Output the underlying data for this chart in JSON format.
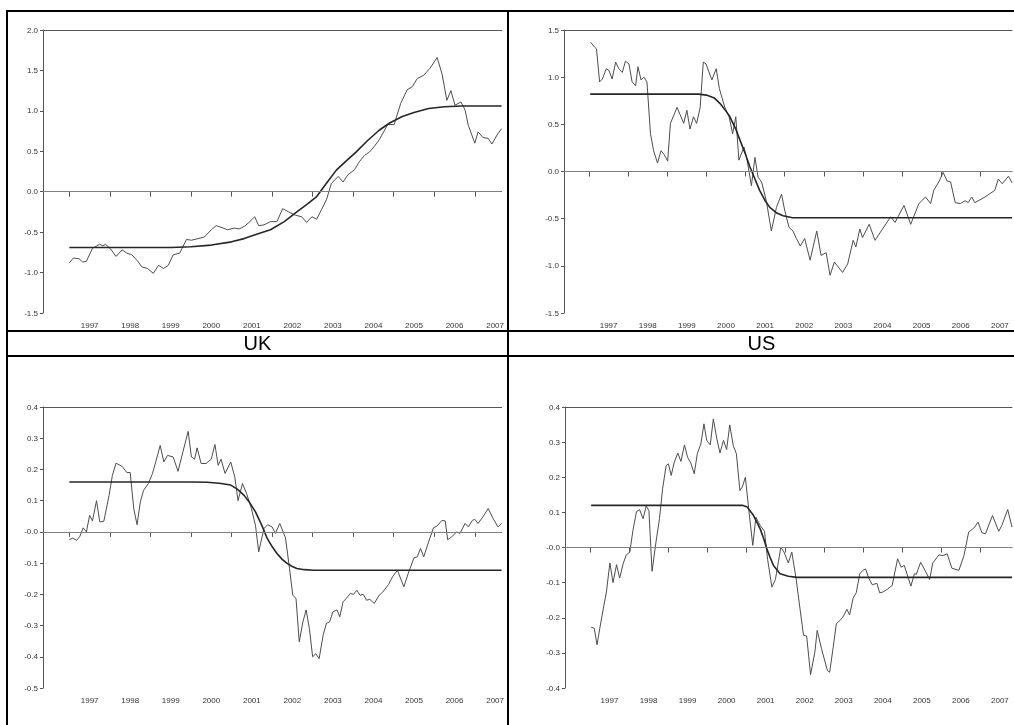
{
  "chart_data": [
    {
      "type": "line",
      "xlabel": "UK",
      "xlim": [
        1996.35,
        2007.66
      ],
      "ylim": [
        -1.5,
        2
      ],
      "xticks": [
        {
          "value": 1997,
          "label": null
        },
        {
          "value": 1997.5,
          "label": "1997"
        },
        {
          "value": 1998,
          "label": null
        },
        {
          "value": 1998.5,
          "label": "1998"
        },
        {
          "value": 1999,
          "label": null
        },
        {
          "value": 1999.5,
          "label": "1999"
        },
        {
          "value": 2000,
          "label": null
        },
        {
          "value": 2000.5,
          "label": "2000"
        },
        {
          "value": 2001,
          "label": null
        },
        {
          "value": 2001.5,
          "label": "2001"
        },
        {
          "value": 2002,
          "label": null
        },
        {
          "value": 2002.5,
          "label": "2002"
        },
        {
          "value": 2003,
          "label": null
        },
        {
          "value": 2003.5,
          "label": "2003"
        },
        {
          "value": 2004,
          "label": null
        },
        {
          "value": 2004.5,
          "label": "2004"
        },
        {
          "value": 2005,
          "label": null
        },
        {
          "value": 2005.5,
          "label": "2005"
        },
        {
          "value": 2006,
          "label": null
        },
        {
          "value": 2006.5,
          "label": "2006"
        },
        {
          "value": 2007,
          "label": null
        },
        {
          "value": 2007.5,
          "label": "2007"
        }
      ],
      "yticks": [
        {
          "value": -1.5,
          "label": "-1.5"
        },
        {
          "value": -1,
          "label": "-1.0"
        },
        {
          "value": -0.5,
          "label": "-0.5"
        },
        {
          "value": 0,
          "label": "0.0"
        },
        {
          "value": 0.5,
          "label": "0.5"
        },
        {
          "value": 1,
          "label": "1.0"
        },
        {
          "value": 1.5,
          "label": "1.5"
        },
        {
          "value": 2,
          "label": "2.0"
        }
      ],
      "ref_lines": [
        {
          "axis": "y",
          "value": 0,
          "color": "#808080"
        }
      ],
      "series": [
        {
          "color": "#4d4d4d",
          "x": [
            1997.0,
            1997.1,
            1997.24,
            1997.33,
            1997.42,
            1997.57,
            1997.75,
            1997.83,
            1997.89,
            1998.02,
            1998.15,
            1998.3,
            1998.42,
            1998.54,
            1998.67,
            1998.79,
            1998.93,
            1999.07,
            1999.2,
            1999.32,
            1999.44,
            1999.56,
            1999.72,
            1999.89,
            2000.01,
            2000.17,
            2000.33,
            2000.5,
            2000.62,
            2000.74,
            2000.9,
            2001.07,
            2001.19,
            2001.31,
            2001.43,
            2001.57,
            2001.67,
            2001.8,
            2001.96,
            2002.12,
            2002.26,
            2002.41,
            2002.57,
            2002.73,
            2002.85,
            2002.98,
            2003.1,
            2003.22,
            2003.34,
            2003.46,
            2003.63,
            2003.75,
            2003.87,
            2004.03,
            2004.15,
            2004.28,
            2004.4,
            2004.52,
            2004.64,
            2004.85,
            2005.01,
            2005.17,
            2005.33,
            2005.46,
            2005.58,
            2005.74,
            2005.9,
            2006.07,
            2006.19,
            2006.31,
            2006.41,
            2006.51,
            2006.66,
            2006.76,
            2006.84,
            2007.0,
            2007.08,
            2007.2,
            2007.33,
            2007.42,
            2007.57,
            2007.66
          ],
          "values": [
            -0.88,
            -0.82,
            -0.83,
            -0.87,
            -0.86,
            -0.7,
            -0.65,
            -0.67,
            -0.65,
            -0.71,
            -0.8,
            -0.72,
            -0.76,
            -0.78,
            -0.85,
            -0.93,
            -0.95,
            -1.01,
            -0.91,
            -0.95,
            -0.91,
            -0.78,
            -0.76,
            -0.59,
            -0.6,
            -0.58,
            -0.56,
            -0.47,
            -0.42,
            -0.44,
            -0.47,
            -0.45,
            -0.46,
            -0.43,
            -0.38,
            -0.31,
            -0.42,
            -0.41,
            -0.37,
            -0.37,
            -0.21,
            -0.25,
            -0.29,
            -0.31,
            -0.38,
            -0.31,
            -0.34,
            -0.22,
            -0.1,
            0.1,
            0.19,
            0.12,
            0.21,
            0.27,
            0.37,
            0.45,
            0.49,
            0.56,
            0.64,
            0.83,
            0.83,
            1.09,
            1.26,
            1.3,
            1.4,
            1.44,
            1.53,
            1.66,
            1.46,
            1.13,
            1.25,
            1.07,
            1.11,
            1.01,
            0.82,
            0.6,
            0.74,
            0.67,
            0.66,
            0.59,
            0.72,
            0.78
          ]
        },
        {
          "color": "#262626",
          "x": [
            1997.0,
            1998.0,
            1999.0,
            1999.5,
            2000.0,
            2000.5,
            2001.0,
            2001.31,
            2001.6,
            2001.96,
            2002.3,
            2002.61,
            2002.85,
            2003.1,
            2003.35,
            2003.59,
            2003.85,
            2004.07,
            2004.35,
            2004.64,
            2004.9,
            2005.21,
            2005.5,
            2005.86,
            2006.25,
            2006.67,
            2007.1,
            2007.66
          ],
          "values": [
            -0.69,
            -0.69,
            -0.69,
            -0.69,
            -0.68,
            -0.66,
            -0.62,
            -0.58,
            -0.53,
            -0.47,
            -0.37,
            -0.25,
            -0.16,
            -0.06,
            0.11,
            0.27,
            0.39,
            0.49,
            0.63,
            0.76,
            0.85,
            0.93,
            0.98,
            1.03,
            1.05,
            1.06,
            1.06,
            1.06
          ]
        }
      ]
    },
    {
      "type": "line",
      "xlabel": "US",
      "xlim": [
        1996.36,
        2007.81
      ],
      "ylim": [
        -1.5,
        1.5
      ],
      "xticks": [
        {
          "value": 1997,
          "label": null
        },
        {
          "value": 1997.5,
          "label": "1997"
        },
        {
          "value": 1998,
          "label": null
        },
        {
          "value": 1998.5,
          "label": "1998"
        },
        {
          "value": 1999,
          "label": null
        },
        {
          "value": 1999.5,
          "label": "1999"
        },
        {
          "value": 2000,
          "label": null
        },
        {
          "value": 2000.5,
          "label": "2000"
        },
        {
          "value": 2001,
          "label": null
        },
        {
          "value": 2001.5,
          "label": "2001"
        },
        {
          "value": 2002,
          "label": null
        },
        {
          "value": 2002.5,
          "label": "2002"
        },
        {
          "value": 2003,
          "label": null
        },
        {
          "value": 2003.5,
          "label": "2003"
        },
        {
          "value": 2004,
          "label": null
        },
        {
          "value": 2004.5,
          "label": "2004"
        },
        {
          "value": 2005,
          "label": null
        },
        {
          "value": 2005.5,
          "label": "2005"
        },
        {
          "value": 2006,
          "label": null
        },
        {
          "value": 2006.5,
          "label": "2006"
        },
        {
          "value": 2007,
          "label": null
        },
        {
          "value": 2007.5,
          "label": "2007"
        }
      ],
      "yticks": [
        {
          "value": -1.5,
          "label": "-1.5"
        },
        {
          "value": -1,
          "label": "-1.0"
        },
        {
          "value": -0.5,
          "label": "-0.5"
        },
        {
          "value": 0,
          "label": "0.0"
        },
        {
          "value": 0.5,
          "label": "0.5"
        },
        {
          "value": 1,
          "label": "1.0"
        },
        {
          "value": 1.5,
          "label": "1.5"
        }
      ],
      "ref_lines": [
        {
          "axis": "y",
          "value": 0,
          "color": "#808080"
        }
      ],
      "series": [
        {
          "color": "#4d4d4d",
          "x": [
            1997.04,
            1997.14,
            1997.19,
            1997.27,
            1997.34,
            1997.44,
            1997.51,
            1997.59,
            1997.68,
            1997.76,
            1997.85,
            1997.93,
            1998.02,
            1998.1,
            1998.19,
            1998.25,
            1998.33,
            1998.4,
            1998.48,
            1998.57,
            1998.65,
            1998.75,
            1998.84,
            1998.92,
            1999.01,
            1999.08,
            1999.25,
            1999.42,
            1999.5,
            1999.58,
            1999.67,
            1999.75,
            1999.84,
            1999.92,
            1999.99,
            2000.14,
            2000.25,
            2000.33,
            2000.47,
            2000.58,
            2000.67,
            2000.75,
            2000.83,
            2000.96,
            2001.04,
            2001.15,
            2001.24,
            2001.32,
            2001.41,
            2001.53,
            2001.66,
            2001.79,
            2001.92,
            2002.0,
            2002.11,
            2002.21,
            2002.3,
            2002.4,
            2002.51,
            2002.65,
            2002.82,
            2002.93,
            2003.06,
            2003.16,
            2003.27,
            2003.48,
            2003.61,
            2003.75,
            2003.82,
            2003.92,
            2003.99,
            2004.16,
            2004.31,
            2004.5,
            2004.71,
            2004.82,
            2005.05,
            2005.22,
            2005.43,
            2005.6,
            2005.73,
            2005.81,
            2005.94,
            2006.05,
            2006.15,
            2006.24,
            2006.36,
            2006.49,
            2006.61,
            2006.69,
            2006.78,
            2006.86,
            2007.12,
            2007.37,
            2007.46,
            2007.56,
            2007.72,
            2007.81
          ],
          "values": [
            1.37,
            1.32,
            1.3,
            0.95,
            0.98,
            1.09,
            1.07,
            0.98,
            1.16,
            1.09,
            1.05,
            1.17,
            1.14,
            0.95,
            0.91,
            1.11,
            0.97,
            1.0,
            0.95,
            0.4,
            0.22,
            0.09,
            0.22,
            0.18,
            0.11,
            0.51,
            0.68,
            0.51,
            0.65,
            0.45,
            0.58,
            0.51,
            0.68,
            1.16,
            1.14,
            0.97,
            1.09,
            0.88,
            0.68,
            0.58,
            0.4,
            0.58,
            0.12,
            0.26,
            0.12,
            -0.15,
            0.15,
            -0.06,
            -0.11,
            -0.31,
            -0.63,
            -0.38,
            -0.24,
            -0.41,
            -0.59,
            -0.63,
            -0.71,
            -0.79,
            -0.71,
            -0.94,
            -0.63,
            -0.89,
            -0.86,
            -1.1,
            -0.96,
            -1.07,
            -0.98,
            -0.73,
            -0.8,
            -0.61,
            -0.7,
            -0.56,
            -0.73,
            -0.61,
            -0.48,
            -0.54,
            -0.36,
            -0.56,
            -0.34,
            -0.27,
            -0.34,
            -0.2,
            -0.11,
            -0.01,
            -0.1,
            -0.11,
            -0.33,
            -0.34,
            -0.31,
            -0.33,
            -0.27,
            -0.33,
            -0.27,
            -0.2,
            -0.08,
            -0.13,
            -0.05,
            -0.12
          ]
        },
        {
          "color": "#262626",
          "x": [
            1997.03,
            1998.0,
            1999.0,
            1999.8,
            2000.0,
            2000.2,
            2000.35,
            2000.5,
            2000.6,
            2000.75,
            2000.86,
            2001.0,
            2001.11,
            2001.25,
            2001.36,
            2001.5,
            2001.62,
            2001.8,
            2001.96,
            2002.2,
            2002.47,
            2003.5,
            2005.0,
            2006.5,
            2007.81
          ],
          "values": [
            0.82,
            0.82,
            0.82,
            0.82,
            0.81,
            0.78,
            0.72,
            0.64,
            0.58,
            0.45,
            0.33,
            0.18,
            0.05,
            -0.09,
            -0.2,
            -0.31,
            -0.38,
            -0.44,
            -0.47,
            -0.49,
            -0.49,
            -0.49,
            -0.49,
            -0.49,
            -0.49
          ]
        }
      ]
    },
    {
      "type": "line",
      "xlim": [
        1996.35,
        2007.66
      ],
      "ylim": [
        -0.5,
        0.4
      ],
      "xticks": [
        {
          "value": 1997,
          "label": null
        },
        {
          "value": 1997.5,
          "label": "1997"
        },
        {
          "value": 1998,
          "label": null
        },
        {
          "value": 1998.5,
          "label": "1998"
        },
        {
          "value": 1999,
          "label": null
        },
        {
          "value": 1999.5,
          "label": "1999"
        },
        {
          "value": 2000,
          "label": null
        },
        {
          "value": 2000.5,
          "label": "2000"
        },
        {
          "value": 2001,
          "label": null
        },
        {
          "value": 2001.5,
          "label": "2001"
        },
        {
          "value": 2002,
          "label": null
        },
        {
          "value": 2002.5,
          "label": "2002"
        },
        {
          "value": 2003,
          "label": null
        },
        {
          "value": 2003.5,
          "label": "2003"
        },
        {
          "value": 2004,
          "label": null
        },
        {
          "value": 2004.5,
          "label": "2004"
        },
        {
          "value": 2005,
          "label": null
        },
        {
          "value": 2005.5,
          "label": "2005"
        },
        {
          "value": 2006,
          "label": null
        },
        {
          "value": 2006.5,
          "label": "2006"
        },
        {
          "value": 2007,
          "label": null
        },
        {
          "value": 2007.5,
          "label": "2007"
        }
      ],
      "yticks": [
        {
          "value": -0.5,
          "label": "-0.5"
        },
        {
          "value": -0.4,
          "label": "-0.4"
        },
        {
          "value": -0.3,
          "label": "-0.3"
        },
        {
          "value": -0.2,
          "label": "-0.2"
        },
        {
          "value": -0.1,
          "label": "-0.1"
        },
        {
          "value": 0,
          "label": "-0.0"
        },
        {
          "value": 0.1,
          "label": "0.1"
        },
        {
          "value": 0.2,
          "label": "0.2"
        },
        {
          "value": 0.3,
          "label": "0.3"
        },
        {
          "value": 0.4,
          "label": "0.4"
        }
      ],
      "ref_lines": [
        {
          "axis": "y",
          "value": 0,
          "color": "#808080"
        }
      ],
      "series": [
        {
          "color": "#4d4d4d",
          "x": [
            1997.0,
            1997.08,
            1997.18,
            1997.26,
            1997.34,
            1997.42,
            1997.5,
            1997.57,
            1997.67,
            1997.75,
            1997.85,
            1997.98,
            1998.06,
            1998.15,
            1998.3,
            1998.42,
            1998.5,
            1998.59,
            1998.67,
            1998.75,
            1998.83,
            1998.95,
            1999.05,
            1999.13,
            1999.24,
            1999.33,
            1999.42,
            1999.56,
            1999.68,
            1999.8,
            1999.93,
            2000.01,
            2000.09,
            2000.15,
            2000.25,
            2000.37,
            2000.5,
            2000.59,
            2000.67,
            2000.74,
            2000.84,
            2000.98,
            2001.08,
            2001.16,
            2001.27,
            2001.37,
            2001.49,
            2001.59,
            2001.67,
            2001.8,
            2001.89,
            2002.0,
            2002.08,
            2002.19,
            2002.33,
            2002.43,
            2002.51,
            2002.59,
            2002.67,
            2002.76,
            2002.84,
            2002.92,
            2003.0,
            2003.08,
            2003.16,
            2003.26,
            2003.34,
            2003.42,
            2003.5,
            2003.6,
            2003.67,
            2003.75,
            2003.83,
            2003.93,
            2004.01,
            2004.09,
            2004.17,
            2004.25,
            2004.33,
            2004.41,
            2004.52,
            2004.64,
            2004.72,
            2004.87,
            2004.97,
            2005.09,
            2005.25,
            2005.37,
            2005.5,
            2005.58,
            2005.66,
            2005.74,
            2005.86,
            2005.98,
            2006.07,
            2006.19,
            2006.27,
            2006.33,
            2006.43,
            2006.55,
            2006.63,
            2006.76,
            2006.84,
            2006.94,
            2007.0,
            2007.08,
            2007.2,
            2007.33,
            2007.45,
            2007.57,
            2007.66
          ],
          "values": [
            -0.025,
            -0.02,
            -0.027,
            -0.014,
            0.013,
            0.0,
            0.053,
            0.035,
            0.1,
            0.032,
            0.034,
            0.117,
            0.18,
            0.22,
            0.21,
            0.19,
            0.19,
            0.073,
            0.023,
            0.096,
            0.133,
            0.155,
            0.187,
            0.224,
            0.277,
            0.224,
            0.245,
            0.24,
            0.194,
            0.256,
            0.322,
            0.24,
            0.233,
            0.269,
            0.219,
            0.219,
            0.233,
            0.28,
            0.213,
            0.233,
            0.187,
            0.224,
            0.176,
            0.1,
            0.155,
            0.123,
            0.075,
            0.021,
            -0.064,
            0.011,
            0.023,
            0.016,
            -0.005,
            0.027,
            -0.019,
            -0.117,
            -0.203,
            -0.213,
            -0.352,
            -0.288,
            -0.25,
            -0.31,
            -0.4,
            -0.39,
            -0.406,
            -0.33,
            -0.293,
            -0.288,
            -0.256,
            -0.25,
            -0.272,
            -0.224,
            -0.213,
            -0.197,
            -0.2,
            -0.187,
            -0.203,
            -0.2,
            -0.219,
            -0.216,
            -0.229,
            -0.203,
            -0.194,
            -0.169,
            -0.144,
            -0.123,
            -0.176,
            -0.128,
            -0.083,
            -0.08,
            -0.053,
            -0.08,
            -0.032,
            0.013,
            0.019,
            0.037,
            0.035,
            -0.025,
            -0.016,
            0.0,
            -0.005,
            0.027,
            0.016,
            0.037,
            0.04,
            0.027,
            0.048,
            0.075,
            0.043,
            0.016,
            0.027
          ]
        },
        {
          "color": "#262626",
          "x": [
            1997.0,
            1998.0,
            1999.0,
            2000.0,
            2000.4,
            2000.7,
            2000.98,
            2001.15,
            2001.31,
            2001.45,
            2001.59,
            2001.75,
            2001.88,
            2002.0,
            2002.12,
            2002.25,
            2002.37,
            2002.5,
            2002.61,
            2002.8,
            2003.02,
            2004.0,
            2005.5,
            2007.66
          ],
          "values": [
            0.16,
            0.16,
            0.16,
            0.16,
            0.159,
            0.156,
            0.15,
            0.136,
            0.117,
            0.093,
            0.064,
            0.02,
            -0.021,
            -0.047,
            -0.069,
            -0.088,
            -0.101,
            -0.111,
            -0.117,
            -0.121,
            -0.123,
            -0.123,
            -0.123,
            -0.123
          ]
        }
      ]
    },
    {
      "type": "line",
      "xlim": [
        1996.36,
        2007.81
      ],
      "ylim": [
        -0.4,
        0.4
      ],
      "xticks": [
        {
          "value": 1997,
          "label": null
        },
        {
          "value": 1997.5,
          "label": "1997"
        },
        {
          "value": 1998,
          "label": null
        },
        {
          "value": 1998.5,
          "label": "1998"
        },
        {
          "value": 1999,
          "label": null
        },
        {
          "value": 1999.5,
          "label": "1999"
        },
        {
          "value": 2000,
          "label": null
        },
        {
          "value": 2000.5,
          "label": "2000"
        },
        {
          "value": 2001,
          "label": null
        },
        {
          "value": 2001.5,
          "label": "2001"
        },
        {
          "value": 2002,
          "label": null
        },
        {
          "value": 2002.5,
          "label": "2002"
        },
        {
          "value": 2003,
          "label": null
        },
        {
          "value": 2003.5,
          "label": "2003"
        },
        {
          "value": 2004,
          "label": null
        },
        {
          "value": 2004.5,
          "label": "2004"
        },
        {
          "value": 2005,
          "label": null
        },
        {
          "value": 2005.5,
          "label": "2005"
        },
        {
          "value": 2006,
          "label": null
        },
        {
          "value": 2006.5,
          "label": "2006"
        },
        {
          "value": 2007,
          "label": null
        },
        {
          "value": 2007.5,
          "label": "2007"
        }
      ],
      "yticks": [
        {
          "value": -0.4,
          "label": "-0.4"
        },
        {
          "value": -0.3,
          "label": "-0.3"
        },
        {
          "value": -0.2,
          "label": "-0.2"
        },
        {
          "value": -0.1,
          "label": "-0.1"
        },
        {
          "value": 0,
          "label": "-0.0"
        },
        {
          "value": 0.1,
          "label": "0.1"
        },
        {
          "value": 0.2,
          "label": "0.2"
        },
        {
          "value": 0.3,
          "label": "0.3"
        },
        {
          "value": 0.4,
          "label": "0.4"
        }
      ],
      "ref_lines": [
        {
          "axis": "y",
          "value": 0,
          "color": "#808080"
        }
      ],
      "series": [
        {
          "color": "#4d4d4d",
          "x": [
            1997.03,
            1997.11,
            1997.18,
            1997.25,
            1997.34,
            1997.42,
            1997.51,
            1997.59,
            1997.68,
            1997.76,
            1997.85,
            1997.93,
            1998.02,
            1998.1,
            1998.19,
            1998.27,
            1998.36,
            1998.44,
            1998.51,
            1998.59,
            1998.69,
            1998.78,
            1998.86,
            1998.95,
            1999.01,
            1999.08,
            1999.16,
            1999.25,
            1999.33,
            1999.42,
            1999.5,
            1999.58,
            1999.67,
            1999.75,
            1999.84,
            1999.92,
            1999.99,
            2000.08,
            2000.16,
            2000.25,
            2000.33,
            2000.42,
            2000.5,
            2000.58,
            2000.67,
            2000.75,
            2000.84,
            2000.9,
            2000.98,
            2001.07,
            2001.17,
            2001.25,
            2001.36,
            2001.47,
            2001.55,
            2001.66,
            2001.75,
            2001.89,
            2001.97,
            2002.08,
            2002.17,
            2002.28,
            2002.38,
            2002.47,
            2002.55,
            2002.65,
            2002.76,
            2002.82,
            2002.93,
            2003.08,
            2003.14,
            2003.23,
            2003.31,
            2003.4,
            2003.48,
            2003.58,
            2003.65,
            2003.74,
            2003.82,
            2003.91,
            2003.99,
            2004.06,
            2004.14,
            2004.23,
            2004.35,
            2004.42,
            2004.5,
            2004.63,
            2004.74,
            2004.88,
            2004.97,
            2005.05,
            2005.22,
            2005.31,
            2005.36,
            2005.47,
            2005.58,
            2005.7,
            2005.78,
            2005.94,
            2006.04,
            2006.15,
            2006.27,
            2006.45,
            2006.58,
            2006.7,
            2006.83,
            2006.94,
            2007.04,
            2007.13,
            2007.31,
            2007.47,
            2007.55,
            2007.7,
            2007.81
          ],
          "values": [
            -0.227,
            -0.23,
            -0.277,
            -0.231,
            -0.175,
            -0.127,
            -0.044,
            -0.1,
            -0.049,
            -0.087,
            -0.046,
            -0.021,
            -0.013,
            0.048,
            0.102,
            0.108,
            0.082,
            0.118,
            0.105,
            -0.068,
            0.015,
            0.082,
            0.167,
            0.233,
            0.238,
            0.205,
            0.243,
            0.269,
            0.245,
            0.292,
            0.257,
            0.241,
            0.21,
            0.267,
            0.295,
            0.352,
            0.305,
            0.292,
            0.366,
            0.309,
            0.269,
            0.305,
            0.279,
            0.349,
            0.29,
            0.267,
            0.162,
            0.172,
            0.2,
            0.105,
            0.006,
            0.086,
            0.063,
            0.046,
            -0.034,
            -0.113,
            -0.091,
            0.001,
            -0.013,
            -0.044,
            -0.013,
            -0.089,
            -0.175,
            -0.25,
            -0.252,
            -0.362,
            -0.298,
            -0.236,
            -0.288,
            -0.35,
            -0.355,
            -0.284,
            -0.217,
            -0.208,
            -0.198,
            -0.176,
            -0.192,
            -0.144,
            -0.129,
            -0.075,
            -0.065,
            -0.061,
            -0.087,
            -0.106,
            -0.102,
            -0.129,
            -0.127,
            -0.118,
            -0.108,
            -0.032,
            -0.056,
            -0.051,
            -0.11,
            -0.075,
            -0.076,
            -0.042,
            -0.065,
            -0.091,
            -0.044,
            -0.021,
            -0.023,
            -0.018,
            -0.059,
            -0.065,
            -0.023,
            0.044,
            0.055,
            0.072,
            0.042,
            0.039,
            0.091,
            0.046,
            0.063,
            0.108,
            0.058
          ]
        },
        {
          "color": "#262626",
          "x": [
            1997.03,
            1998.0,
            1999.0,
            2000.0,
            2000.9,
            2001.03,
            2001.19,
            2001.36,
            2001.45,
            2001.53,
            2001.62,
            2001.7,
            2001.87,
            2002.08,
            2002.3,
            2003.5,
            2005.0,
            2006.5,
            2007.81
          ],
          "values": [
            0.12,
            0.12,
            0.12,
            0.12,
            0.12,
            0.115,
            0.091,
            0.053,
            0.025,
            -0.004,
            -0.03,
            -0.051,
            -0.075,
            -0.082,
            -0.085,
            -0.085,
            -0.085,
            -0.085,
            -0.085
          ]
        }
      ]
    }
  ]
}
